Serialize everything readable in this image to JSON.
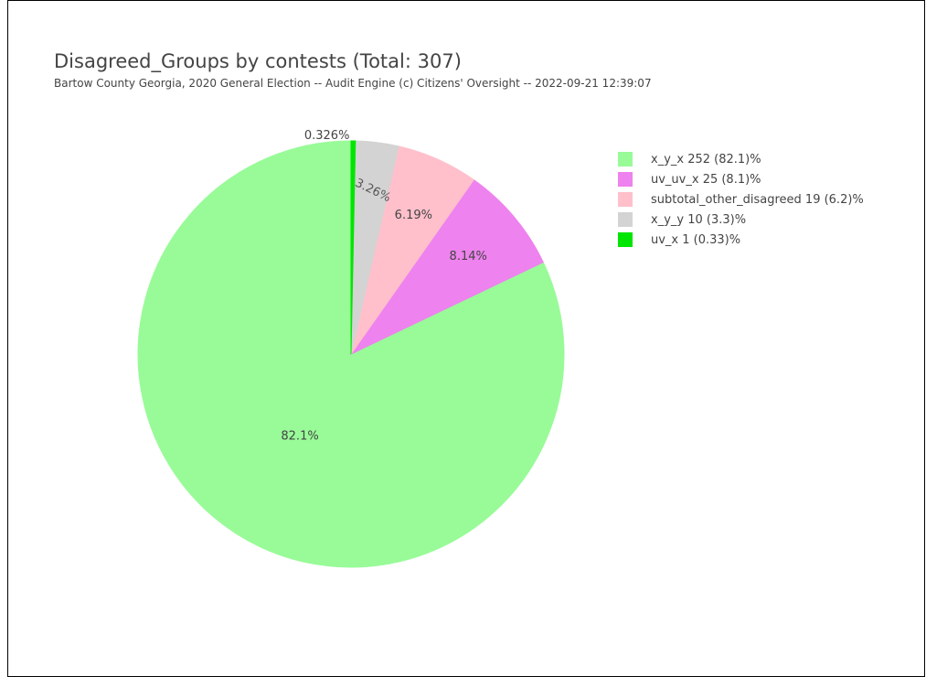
{
  "chart_data": {
    "type": "pie",
    "title": "Disagreed_Groups by contests (Total: 307)",
    "subtitle": "Bartow County Georgia, 2020 General Election -- Audit Engine (c) Citizens' Oversight -- 2022-09-21 12:39:07",
    "legend_position": "right",
    "slices": [
      {
        "label": "x_y_x",
        "value": 252,
        "percent_label": "82.1%",
        "legend": "x_y_x 252 (82.1)%",
        "color": "#98fb98"
      },
      {
        "label": "uv_uv_x",
        "value": 25,
        "percent_label": "8.14%",
        "legend": "uv_uv_x 25 (8.1)%",
        "color": "#ee82ee"
      },
      {
        "label": "subtotal_other_disagreed",
        "value": 19,
        "percent_label": "6.19%",
        "legend": "subtotal_other_disagreed 19 (6.2)%",
        "color": "#ffc0cb"
      },
      {
        "label": "x_y_y",
        "value": 10,
        "percent_label": "3.26%",
        "legend": "x_y_y 10 (3.3)%",
        "color": "#d3d3d3"
      },
      {
        "label": "uv_x",
        "value": 1,
        "percent_label": "0.326%",
        "legend": "uv_x 1 (0.33)%",
        "color": "#00e600"
      }
    ]
  }
}
